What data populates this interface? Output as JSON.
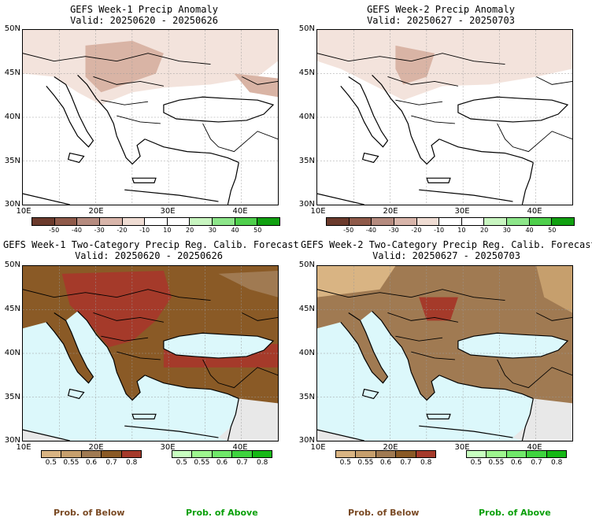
{
  "panels": [
    {
      "title": "GEFS Week-1 Precip Anomaly",
      "valid": "Valid: 20250620 - 20250626"
    },
    {
      "title": "GEFS Week-2 Precip Anomaly",
      "valid": "Valid: 20250627 - 20250703"
    },
    {
      "title": "GEFS Week-1 Two-Category Precip Reg. Calib. Forecast",
      "valid": "Valid: 20250620 - 20250626"
    },
    {
      "title": "GEFS Week-2 Two-Category Precip Reg. Calib. Forecast",
      "valid": "Valid: 20250627 - 20250703"
    }
  ],
  "lat_labels": [
    "50N",
    "45N",
    "40N",
    "35N",
    "30N"
  ],
  "lon_labels": [
    "10E",
    "20E",
    "30E",
    "40E"
  ],
  "anomaly_colorbar": {
    "ticks": [
      "-50",
      "-40",
      "-30",
      "-20",
      "-10",
      "10",
      "20",
      "30",
      "40",
      "50"
    ],
    "colors": [
      "#6b3a2c",
      "#8f5a4a",
      "#b58b7f",
      "#d8b5aa",
      "#efdcd3",
      "#ffffff",
      "#ffffff",
      "#c8f5c0",
      "#8de68a",
      "#4fcf4c",
      "#10a010"
    ]
  },
  "prob_below_colorbar": {
    "ticks": [
      "0.5",
      "0.55",
      "0.6",
      "0.7",
      "0.8"
    ],
    "colors": [
      "#d9b483",
      "#c69f6d",
      "#a07a52",
      "#8a5a26",
      "#a53a2a"
    ]
  },
  "prob_above_colorbar": {
    "ticks": [
      "0.5",
      "0.55",
      "0.6",
      "0.7",
      "0.8"
    ],
    "colors": [
      "#c8ffc0",
      "#9ef58f",
      "#70e86a",
      "#3fd33f",
      "#16b816"
    ]
  },
  "legend": {
    "below": "Prob. of Below",
    "above": "Prob. of Above",
    "below_color": "#7a4a24",
    "above_color": "#0aa00a"
  },
  "map_colors": {
    "sea": "#dcf8fb",
    "land_nodata": "#e8e8e8",
    "anomaly_light": "#f3e3dc",
    "anomaly_medium": "#d9b4a5"
  }
}
